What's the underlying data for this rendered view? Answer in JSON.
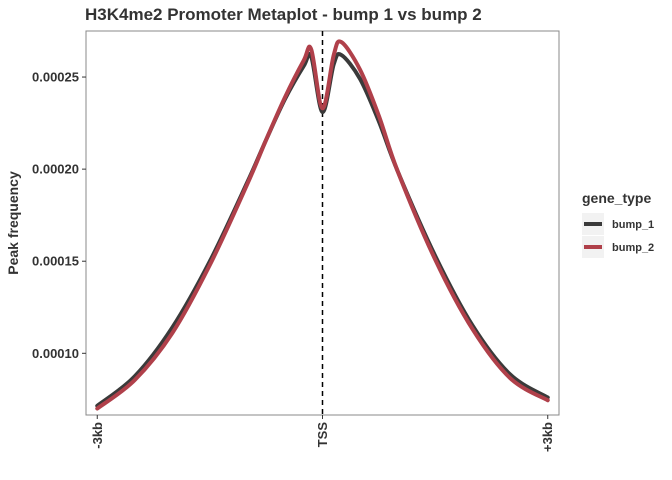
{
  "chart_data": {
    "type": "line",
    "title": "H3K4me2 Promoter Metaplot - bump 1 vs bump 2",
    "xlabel": "",
    "ylabel": "Peak frequency",
    "x_tick_labels": [
      "-3kb",
      "TSS",
      "+3kb"
    ],
    "x_tick_positions": [
      -3000,
      0,
      3000
    ],
    "xlim": [
      -3150,
      3150
    ],
    "ylim": [
      6.65e-05,
      0.000275
    ],
    "y_ticks": [
      0.0001,
      0.00015,
      0.0002,
      0.00025
    ],
    "y_tick_labels": [
      "0.00010",
      "0.00015",
      "0.00020",
      "0.00025"
    ],
    "vline": {
      "x": 0,
      "style": "dashed"
    },
    "grid": false,
    "legend": {
      "title": "gene_type",
      "position": "right"
    },
    "x": [
      -3000,
      -2500,
      -2000,
      -1500,
      -1000,
      -750,
      -500,
      -250,
      -150,
      0,
      150,
      250,
      500,
      750,
      1000,
      1500,
      2000,
      2500,
      3000
    ],
    "series": [
      {
        "name": "bump_1",
        "color": "#3a3a3a",
        "values": [
          7.15e-05,
          8.75e-05,
          0.000114,
          0.00015,
          0.000193,
          0.000216,
          0.000238,
          0.000256,
          0.000261,
          0.000231,
          0.000257,
          0.000262,
          0.000249,
          0.000226,
          0.000199,
          0.000153,
          0.000115,
          8.85e-05,
          7.6e-05
        ]
      },
      {
        "name": "bump_2",
        "color": "#b0404a",
        "values": [
          7e-05,
          8.55e-05,
          0.000111,
          0.000148,
          0.000192,
          0.000216,
          0.000239,
          0.000259,
          0.000265,
          0.000233,
          0.000262,
          0.000269,
          0.000254,
          0.000229,
          0.000199,
          0.000151,
          0.000113,
          8.65e-05,
          7.45e-05
        ]
      }
    ]
  }
}
